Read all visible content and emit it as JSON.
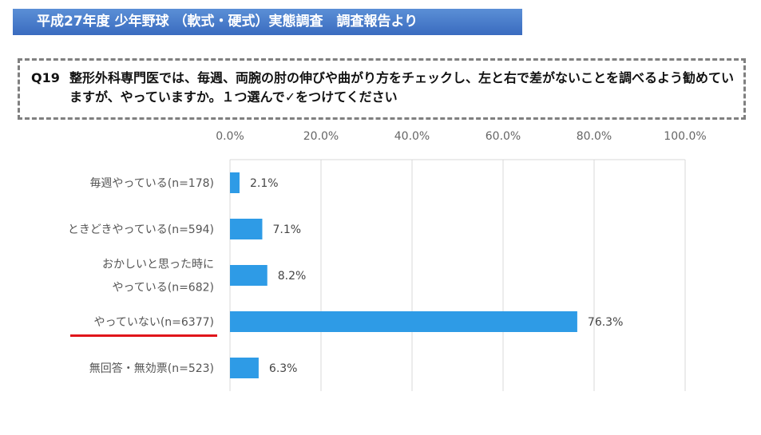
{
  "banner": {
    "title": "平成27年度 少年野球 （軟式・硬式）実態調査　調査報告より"
  },
  "question": {
    "number": "Q19",
    "text": "整形外科専門医では、毎週、両腕の肘の伸びや曲がり方をチェックし、左と右で差がないことを調べるよう勧めていますが、やっていますか。１つ選んで✓をつけてください"
  },
  "highlight_color": "#e0151b",
  "chart_data": {
    "type": "bar",
    "orientation": "horizontal",
    "categories": [
      [
        "毎週やっている(n=178)"
      ],
      [
        "ときどきやっている(n=594)"
      ],
      [
        "おかしいと思った時に",
        "やっている(n=682)"
      ],
      [
        "やっていない(n=6377)"
      ],
      [
        "無回答・無効票(n=523)"
      ]
    ],
    "values": [
      2.1,
      7.1,
      8.2,
      76.3,
      6.3
    ],
    "value_labels": [
      "2.1%",
      "7.1%",
      "8.2%",
      "76.3%",
      "6.3%"
    ],
    "highlighted_category_index": 3,
    "xlim": [
      0,
      100
    ],
    "xticks": [
      "0.0%",
      "20.0%",
      "40.0%",
      "60.0%",
      "80.0%",
      "100.0%"
    ],
    "grid": true,
    "bar_color": "#2e9be6",
    "title": "",
    "xlabel": "",
    "ylabel": ""
  }
}
